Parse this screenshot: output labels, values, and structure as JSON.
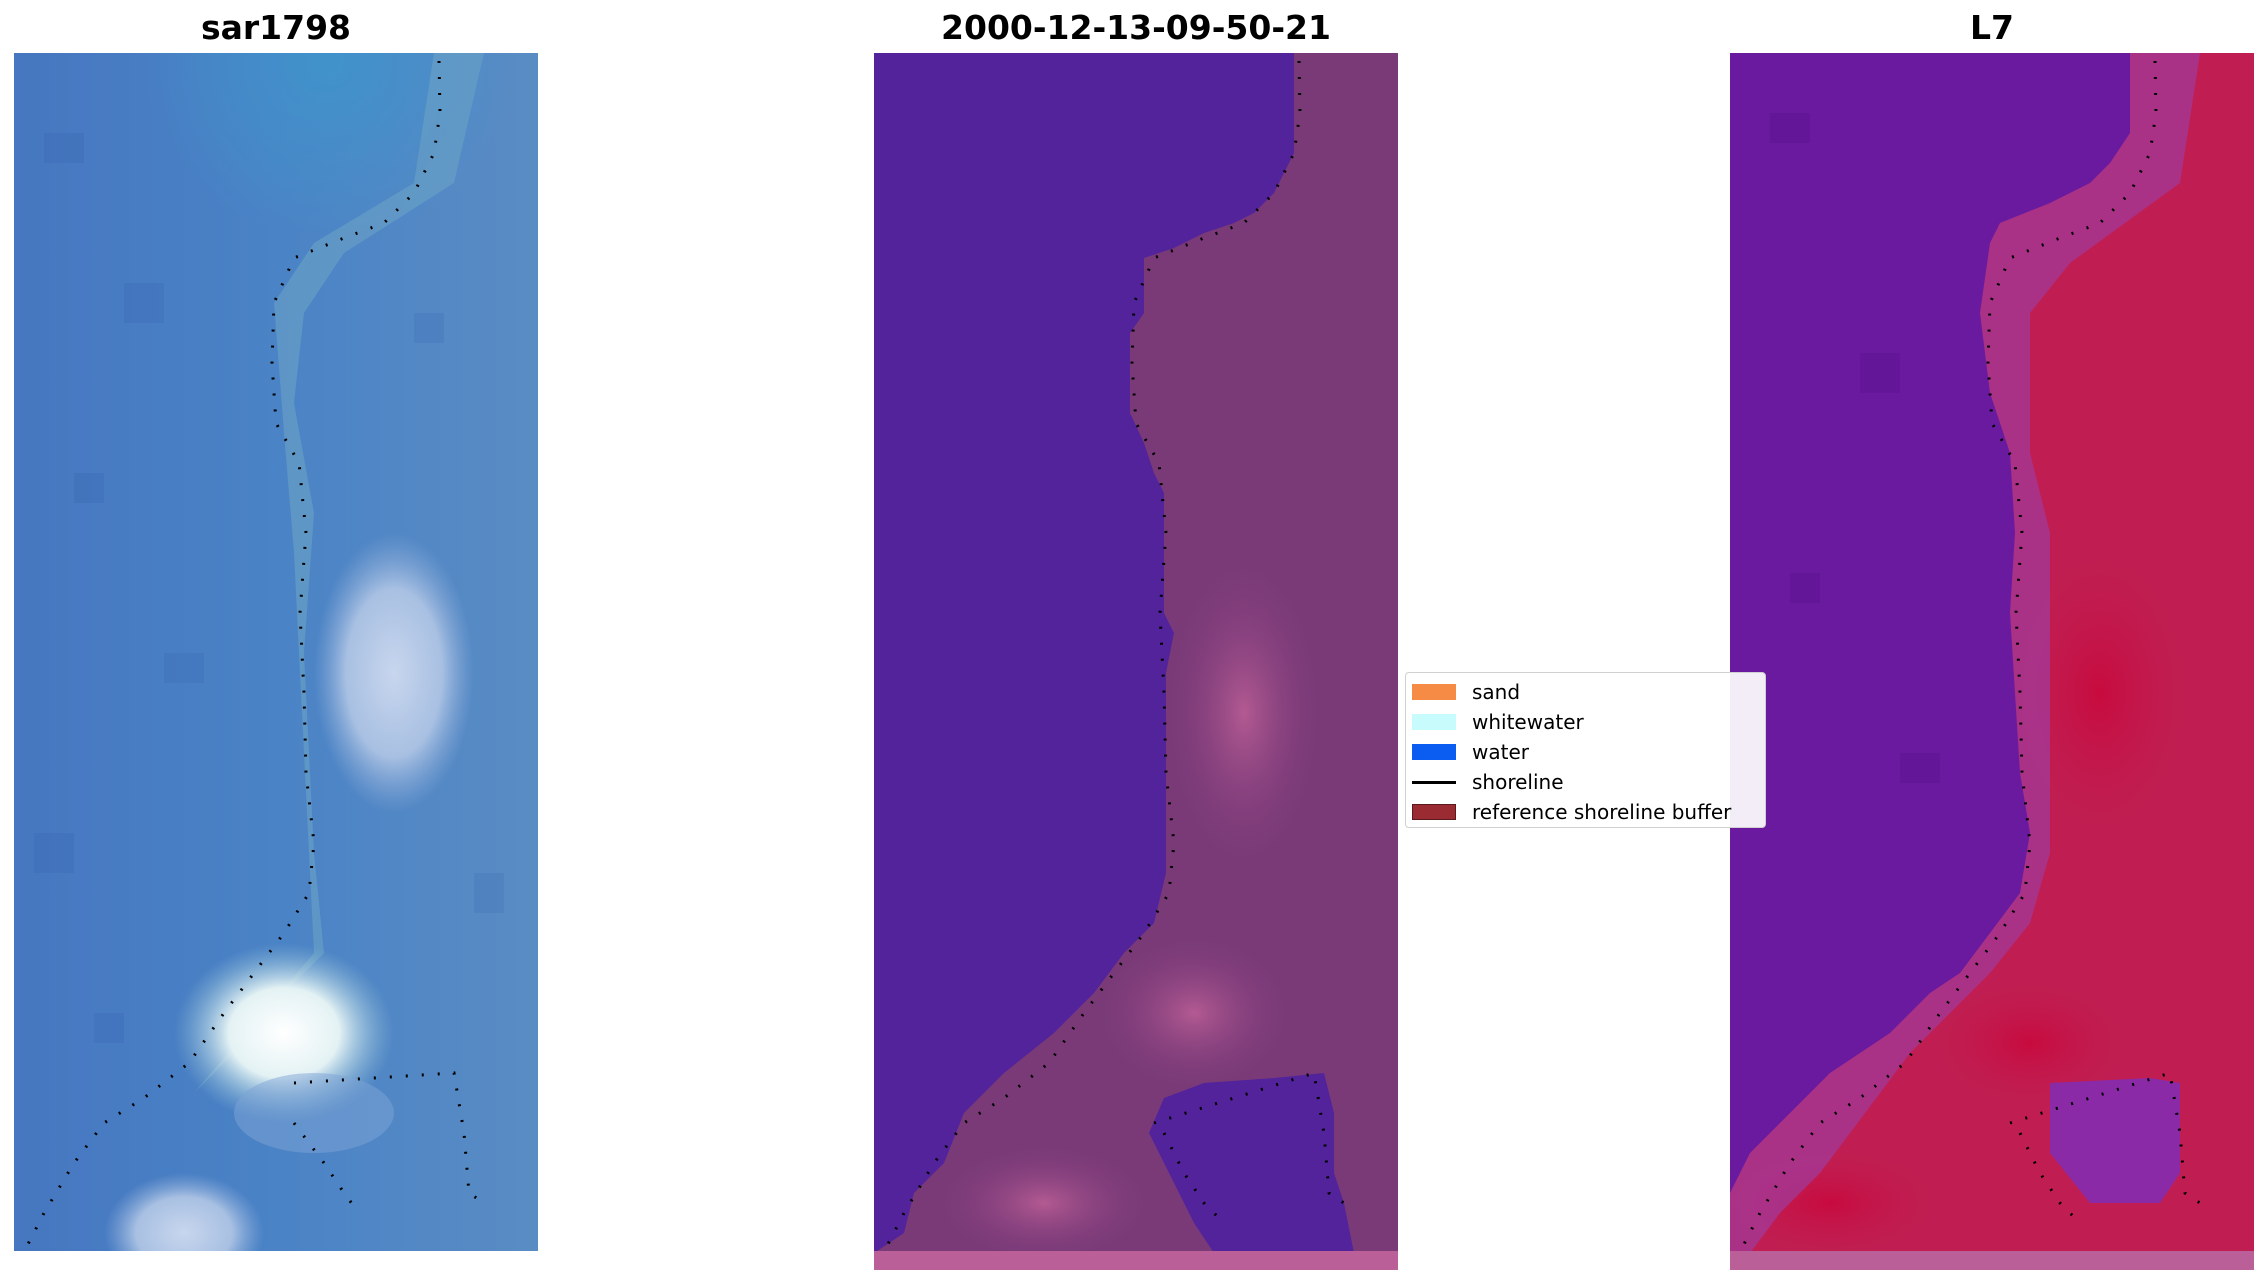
{
  "panels": [
    {
      "title": "sar1798"
    },
    {
      "title": "2000-12-13-09-50-21"
    },
    {
      "title": "L7"
    }
  ],
  "legend": {
    "items": [
      {
        "label": "sand",
        "color": "#f58b45",
        "kind": "patch"
      },
      {
        "label": "whitewater",
        "color": "#c8fcfc",
        "kind": "patch"
      },
      {
        "label": "water",
        "color": "#0a5df0",
        "kind": "patch"
      },
      {
        "label": "shoreline",
        "color": "#000000",
        "kind": "line"
      },
      {
        "label": "reference shoreline buffer",
        "color": "#9b2b33",
        "kind": "patch"
      }
    ]
  },
  "colors": {
    "rgb_water": "#4a7fc4",
    "rgb_shore": "#5a96c8",
    "classified_water": "#52239a",
    "classified_land": "#7a3a78",
    "classified_sand": "#b0558e",
    "index_water": "#6a1a9e",
    "index_land": "#c01e52",
    "index_mid": "#a23a9a"
  }
}
